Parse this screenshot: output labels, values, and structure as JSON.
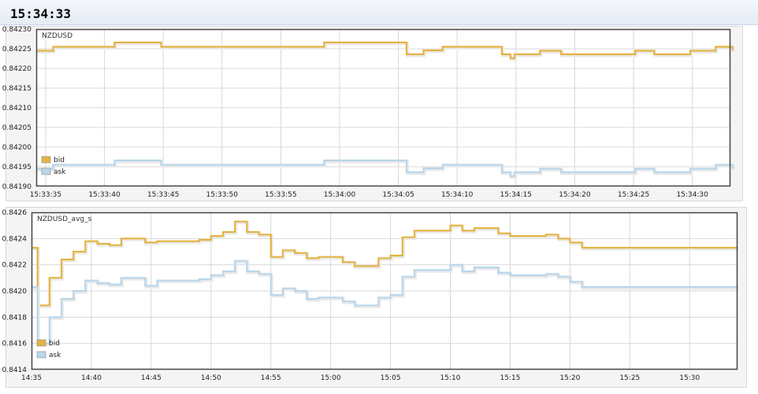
{
  "header": {
    "clock": "15:34:33"
  },
  "colors": {
    "bid": "#e3b442",
    "ask": "#b9d6ea",
    "grid": "#d8d8d8",
    "frame": "#444444"
  },
  "chart_data": [
    {
      "type": "line",
      "step": true,
      "title": "NZDUSD",
      "ylim": [
        0.8419,
        0.8423
      ],
      "yticks": [
        "0.84190",
        "0.84195",
        "0.84200",
        "0.84205",
        "0.84210",
        "0.84215",
        "0.84220",
        "0.84225",
        "0.84230"
      ],
      "xlim": [
        15.5595,
        15.5759
      ],
      "xticks": [
        {
          "t": 15.559722,
          "label": "15:33:35"
        },
        {
          "t": 15.561111,
          "label": "15:33:40"
        },
        {
          "t": 15.5625,
          "label": "15:33:45"
        },
        {
          "t": 15.563889,
          "label": "15:33:50"
        },
        {
          "t": 15.565278,
          "label": "15:33:55"
        },
        {
          "t": 15.566667,
          "label": "15:34:00"
        },
        {
          "t": 15.568056,
          "label": "15:34:05"
        },
        {
          "t": 15.569444,
          "label": "15:34:10"
        },
        {
          "t": 15.570833,
          "label": "15:34:15"
        },
        {
          "t": 15.572222,
          "label": "15:34:20"
        },
        {
          "t": 15.573611,
          "label": "15:34:25"
        },
        {
          "t": 15.575,
          "label": "15:34:30"
        }
      ],
      "legend": {
        "position": "bottom-left"
      },
      "series": [
        {
          "name": "bid",
          "colorKey": "bid",
          "points": [
            [
              15.5595,
              0.842245
            ],
            [
              15.5599,
              0.842255
            ],
            [
              15.56135,
              0.842266
            ],
            [
              15.56245,
              0.842255
            ],
            [
              15.5663,
              0.842266
            ],
            [
              15.56825,
              0.842236
            ],
            [
              15.56865,
              0.842246
            ],
            [
              15.5691,
              0.842255
            ],
            [
              15.5705,
              0.842236
            ],
            [
              15.5707,
              0.842226
            ],
            [
              15.5708,
              0.842236
            ],
            [
              15.5714,
              0.842245
            ],
            [
              15.5719,
              0.842236
            ],
            [
              15.57365,
              0.842245
            ],
            [
              15.5741,
              0.842236
            ],
            [
              15.57495,
              0.842245
            ],
            [
              15.57555,
              0.842255
            ],
            [
              15.57595,
              0.842245
            ]
          ]
        },
        {
          "name": "ask",
          "colorKey": "ask",
          "points": [
            [
              15.5595,
              0.841945
            ],
            [
              15.5599,
              0.841955
            ],
            [
              15.56135,
              0.841966
            ],
            [
              15.56245,
              0.841955
            ],
            [
              15.5663,
              0.841966
            ],
            [
              15.56825,
              0.841936
            ],
            [
              15.56865,
              0.841946
            ],
            [
              15.5691,
              0.841955
            ],
            [
              15.5705,
              0.841936
            ],
            [
              15.5707,
              0.841926
            ],
            [
              15.5708,
              0.841936
            ],
            [
              15.5714,
              0.841945
            ],
            [
              15.5719,
              0.841936
            ],
            [
              15.57365,
              0.841945
            ],
            [
              15.5741,
              0.841936
            ],
            [
              15.57495,
              0.841945
            ],
            [
              15.57555,
              0.841955
            ],
            [
              15.57595,
              0.841945
            ]
          ]
        }
      ]
    },
    {
      "type": "line",
      "step": true,
      "title": "NZDUSD_avg_s",
      "ylim": [
        0.8414,
        0.8426
      ],
      "yticks": [
        "0.8414",
        "0.8416",
        "0.8418",
        "0.8420",
        "0.8422",
        "0.8424",
        "0.8426"
      ],
      "xlim": [
        14.5833,
        15.5667
      ],
      "xticks": [
        {
          "t": 14.583333,
          "label": "14:35"
        },
        {
          "t": 14.666667,
          "label": "14:40"
        },
        {
          "t": 14.75,
          "label": "14:45"
        },
        {
          "t": 14.833333,
          "label": "14:50"
        },
        {
          "t": 14.916667,
          "label": "14:55"
        },
        {
          "t": 15.0,
          "label": "15:00"
        },
        {
          "t": 15.083333,
          "label": "15:05"
        },
        {
          "t": 15.166667,
          "label": "15:10"
        },
        {
          "t": 15.25,
          "label": "15:15"
        },
        {
          "t": 15.333333,
          "label": "15:20"
        },
        {
          "t": 15.416667,
          "label": "15:25"
        },
        {
          "t": 15.5,
          "label": "15:30"
        }
      ],
      "legend": {
        "position": "bottom-left"
      },
      "series": [
        {
          "name": "bid",
          "colorKey": "bid",
          "points": [
            [
              14.5833,
              0.84233
            ],
            [
              14.5917,
              0.84189
            ],
            [
              14.6083,
              0.8421
            ],
            [
              14.625,
              0.84224
            ],
            [
              14.6417,
              0.8423
            ],
            [
              14.6583,
              0.84238
            ],
            [
              14.675,
              0.84236
            ],
            [
              14.6917,
              0.84235
            ],
            [
              14.7083,
              0.8424
            ],
            [
              14.7417,
              0.84237
            ],
            [
              14.7583,
              0.84238
            ],
            [
              14.8167,
              0.84239
            ],
            [
              14.8333,
              0.84242
            ],
            [
              14.85,
              0.84245
            ],
            [
              14.8667,
              0.84253
            ],
            [
              14.8833,
              0.84245
            ],
            [
              14.9,
              0.84243
            ],
            [
              14.9167,
              0.84226
            ],
            [
              14.9333,
              0.84231
            ],
            [
              14.95,
              0.84229
            ],
            [
              14.9667,
              0.84225
            ],
            [
              14.9833,
              0.84226
            ],
            [
              15.0167,
              0.84222
            ],
            [
              15.0333,
              0.84219
            ],
            [
              15.0667,
              0.84225
            ],
            [
              15.0833,
              0.84227
            ],
            [
              15.1,
              0.84241
            ],
            [
              15.1167,
              0.84246
            ],
            [
              15.1667,
              0.8425
            ],
            [
              15.1833,
              0.84246
            ],
            [
              15.2,
              0.84248
            ],
            [
              15.2333,
              0.84244
            ],
            [
              15.25,
              0.84242
            ],
            [
              15.3,
              0.84243
            ],
            [
              15.3167,
              0.8424
            ],
            [
              15.3333,
              0.84237
            ],
            [
              15.35,
              0.84233
            ],
            [
              15.5667,
              0.84233
            ]
          ]
        },
        {
          "name": "ask",
          "colorKey": "ask",
          "points": [
            [
              14.5833,
              0.84203
            ],
            [
              14.5917,
              0.8416
            ],
            [
              14.6083,
              0.8418
            ],
            [
              14.625,
              0.84194
            ],
            [
              14.6417,
              0.842
            ],
            [
              14.6583,
              0.84208
            ],
            [
              14.675,
              0.84206
            ],
            [
              14.6917,
              0.84205
            ],
            [
              14.7083,
              0.8421
            ],
            [
              14.7417,
              0.84204
            ],
            [
              14.7583,
              0.84208
            ],
            [
              14.8167,
              0.84209
            ],
            [
              14.8333,
              0.84212
            ],
            [
              14.85,
              0.84215
            ],
            [
              14.8667,
              0.84223
            ],
            [
              14.8833,
              0.84215
            ],
            [
              14.9,
              0.84213
            ],
            [
              14.9167,
              0.84197
            ],
            [
              14.9333,
              0.84202
            ],
            [
              14.95,
              0.842
            ],
            [
              14.9667,
              0.84194
            ],
            [
              14.9833,
              0.84195
            ],
            [
              15.0167,
              0.84192
            ],
            [
              15.0333,
              0.84189
            ],
            [
              15.0667,
              0.84195
            ],
            [
              15.0833,
              0.84197
            ],
            [
              15.1,
              0.84211
            ],
            [
              15.1167,
              0.84216
            ],
            [
              15.1667,
              0.8422
            ],
            [
              15.1833,
              0.84215
            ],
            [
              15.2,
              0.84218
            ],
            [
              15.2333,
              0.84214
            ],
            [
              15.25,
              0.84212
            ],
            [
              15.3,
              0.84213
            ],
            [
              15.3167,
              0.84211
            ],
            [
              15.3333,
              0.84207
            ],
            [
              15.35,
              0.84203
            ],
            [
              15.5667,
              0.84203
            ]
          ]
        }
      ]
    }
  ]
}
